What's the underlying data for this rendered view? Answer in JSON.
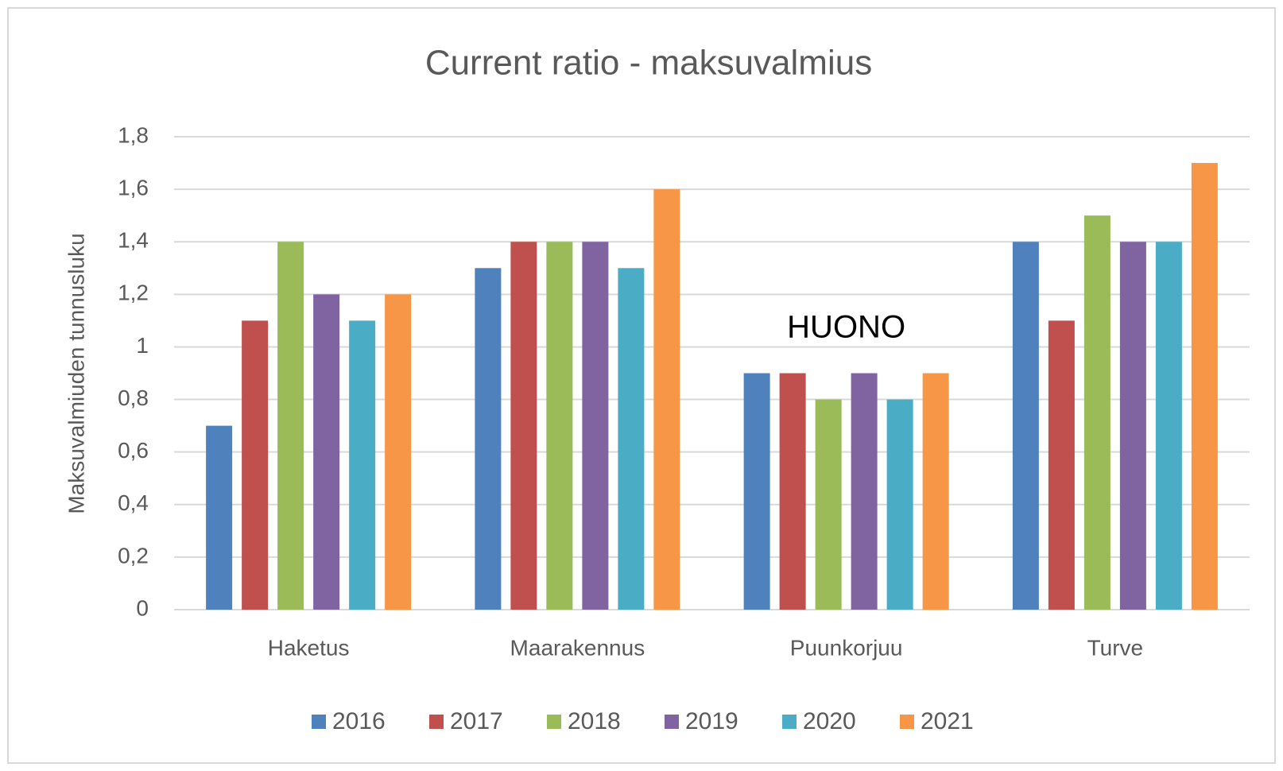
{
  "chart_data": {
    "type": "bar",
    "title": "Current ratio - maksuvalmius",
    "y_label": "Maksuvalmiuden tunnusluku",
    "annotation": "HUONO",
    "categories": [
      "Haketus",
      "Maarakennus",
      "Puunkorjuu",
      "Turve"
    ],
    "series": [
      {
        "name": "2016",
        "color": "#4f81bd",
        "values": [
          0.7,
          1.3,
          0.9,
          1.4
        ]
      },
      {
        "name": "2017",
        "color": "#c0504d",
        "values": [
          1.1,
          1.4,
          0.9,
          1.1
        ]
      },
      {
        "name": "2018",
        "color": "#9bbb59",
        "values": [
          1.4,
          1.4,
          0.8,
          1.5
        ]
      },
      {
        "name": "2019",
        "color": "#8064a2",
        "values": [
          1.2,
          1.4,
          0.9,
          1.4
        ]
      },
      {
        "name": "2020",
        "color": "#4bacc6",
        "values": [
          1.1,
          1.3,
          0.8,
          1.4
        ]
      },
      {
        "name": "2021",
        "color": "#f79646",
        "values": [
          1.2,
          1.6,
          0.9,
          1.7
        ]
      }
    ],
    "ylim": [
      0,
      1.8
    ],
    "yticks": [
      0,
      {
        "value": 0.2,
        "label": "0,2"
      },
      {
        "value": 0.4,
        "label": "0,4"
      },
      {
        "value": 0.6,
        "label": "0,6"
      },
      {
        "value": 0.8,
        "label": "0,8"
      },
      1,
      {
        "value": 1.2,
        "label": "1,2"
      },
      {
        "value": 1.4,
        "label": "1,4"
      },
      {
        "value": 1.6,
        "label": "1,6"
      },
      {
        "value": 1.8,
        "label": "1,8"
      }
    ],
    "grid": true,
    "legend": "bottom"
  }
}
